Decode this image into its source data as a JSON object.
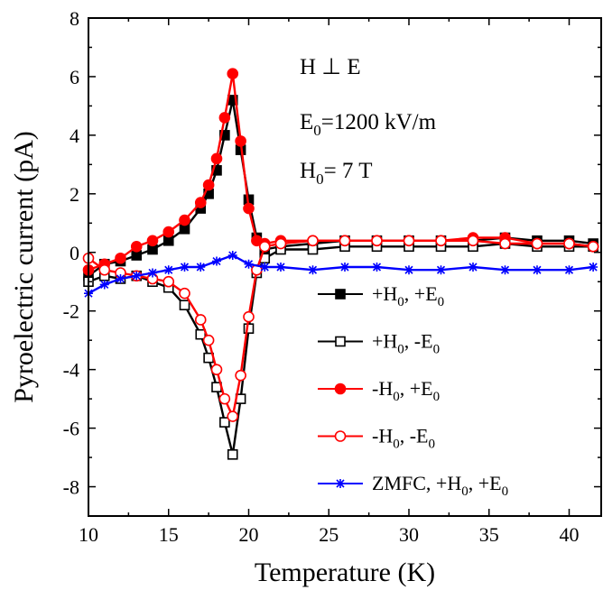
{
  "chart_data": {
    "type": "line",
    "xlabel": "Temperature (K)",
    "ylabel": "Pyroelectric current (pA)",
    "xlim": [
      10,
      42
    ],
    "ylim": [
      -9,
      8
    ],
    "xticks": [
      10,
      15,
      20,
      25,
      30,
      35,
      40
    ],
    "yticks": [
      -8,
      -6,
      -4,
      -2,
      0,
      2,
      4,
      6,
      8
    ],
    "grid": false,
    "legend_position": "lower-right",
    "annotations": {
      "orientation": {
        "main": "H ⊥ E"
      },
      "field_e": {
        "main": "E",
        "sub": "0",
        "rest": "=1200 kV/m"
      },
      "field_h": {
        "main": "H",
        "sub": "0",
        "rest": "= 7 T"
      }
    },
    "series": [
      {
        "label_parts": [
          "+H",
          "0",
          ", +E",
          "0"
        ],
        "color": "#000000",
        "marker": "square-filled",
        "x": [
          10,
          11,
          12,
          13,
          14,
          15,
          16,
          17,
          17.5,
          18,
          18.5,
          19,
          19.5,
          20,
          20.5,
          21,
          22,
          24,
          26,
          28,
          30,
          32,
          34,
          36,
          38,
          40,
          41.5
        ],
        "y": [
          -0.8,
          -0.4,
          -0.3,
          -0.1,
          0.1,
          0.4,
          0.8,
          1.5,
          2.0,
          2.8,
          4.0,
          5.2,
          3.5,
          1.8,
          0.5,
          0.1,
          0.2,
          0.3,
          0.4,
          0.4,
          0.4,
          0.4,
          0.4,
          0.5,
          0.4,
          0.4,
          0.3
        ]
      },
      {
        "label_parts": [
          "+H",
          "0",
          ", -E",
          "0"
        ],
        "color": "#000000",
        "marker": "square-open",
        "x": [
          10,
          11,
          12,
          13,
          14,
          15,
          16,
          17,
          17.5,
          18,
          18.5,
          19,
          19.5,
          20,
          20.5,
          21,
          22,
          24,
          26,
          28,
          30,
          32,
          34,
          36,
          38,
          40,
          41.5
        ],
        "y": [
          -1.0,
          -0.8,
          -0.9,
          -0.8,
          -1.0,
          -1.2,
          -1.8,
          -2.8,
          -3.6,
          -4.6,
          -5.8,
          -6.9,
          -5.0,
          -2.6,
          -0.7,
          -0.2,
          0.1,
          0.1,
          0.2,
          0.2,
          0.2,
          0.2,
          0.2,
          0.3,
          0.2,
          0.2,
          0.2
        ]
      },
      {
        "label_parts": [
          "-H",
          "0",
          ", +E",
          "0"
        ],
        "color": "#ff0000",
        "marker": "circle-filled",
        "x": [
          10,
          11,
          12,
          13,
          14,
          15,
          16,
          17,
          17.5,
          18,
          18.5,
          19,
          19.5,
          20,
          20.5,
          21,
          22,
          24,
          26,
          28,
          30,
          32,
          34,
          36,
          38,
          40,
          41.5
        ],
        "y": [
          -0.6,
          -0.4,
          -0.2,
          0.2,
          0.4,
          0.7,
          1.1,
          1.7,
          2.3,
          3.2,
          4.6,
          6.1,
          3.8,
          1.5,
          0.4,
          0.3,
          0.4,
          0.4,
          0.4,
          0.4,
          0.4,
          0.4,
          0.5,
          0.5,
          0.3,
          0.3,
          0.2
        ]
      },
      {
        "label_parts": [
          "-H",
          "0",
          ", -E",
          "0"
        ],
        "color": "#ff0000",
        "marker": "circle-open",
        "x": [
          10,
          11,
          12,
          13,
          14,
          15,
          16,
          17,
          17.5,
          18,
          18.5,
          19,
          19.5,
          20,
          20.5,
          21,
          22,
          24,
          26,
          28,
          30,
          32,
          34,
          36,
          38,
          40,
          41.5
        ],
        "y": [
          -0.2,
          -0.6,
          -0.7,
          -0.8,
          -0.9,
          -1.0,
          -1.4,
          -2.3,
          -3.0,
          -4.0,
          -5.0,
          -5.6,
          -4.2,
          -2.2,
          -0.6,
          0.2,
          0.3,
          0.4,
          0.4,
          0.4,
          0.4,
          0.4,
          0.4,
          0.3,
          0.3,
          0.3,
          0.2
        ]
      },
      {
        "label_parts": [
          "ZMFC, +H",
          "0",
          ", +E",
          "0"
        ],
        "color": "#0000ff",
        "marker": "star",
        "x": [
          10,
          11,
          12,
          13,
          14,
          15,
          16,
          17,
          18,
          19,
          20,
          21,
          22,
          24,
          26,
          28,
          30,
          32,
          34,
          36,
          38,
          40,
          41.5
        ],
        "y": [
          -1.4,
          -1.1,
          -0.9,
          -0.8,
          -0.7,
          -0.6,
          -0.5,
          -0.5,
          -0.3,
          -0.1,
          -0.4,
          -0.5,
          -0.5,
          -0.6,
          -0.5,
          -0.5,
          -0.6,
          -0.6,
          -0.5,
          -0.6,
          -0.6,
          -0.6,
          -0.5
        ]
      }
    ]
  }
}
